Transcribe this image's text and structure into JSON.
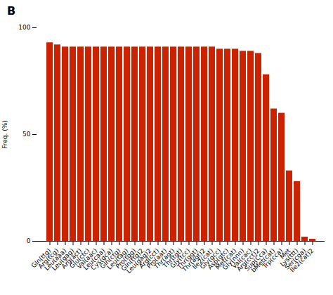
{
  "chart_data": {
    "type": "bar",
    "title": "B",
    "ylabel": "Freq. (%)",
    "categories": [
      "Gln(ttg)",
      "Arg(tcg)",
      "Leu(aaa)",
      "Leu(gag)",
      "Arg(act)",
      "Glu(ctc)",
      "Val(aac)",
      "Leu(caa)",
      "Cys(gca)",
      "Gln(ctg)",
      "Leu(tag)",
      "Pro(tgg)",
      "Gln(ttg)2",
      "Leu(gag)2",
      "Arg(cct)",
      "Pro(aat)",
      "Thr(agt)",
      "Thr(tgt)",
      "Gly(tcc)",
      "Thr(ggt)",
      "Thr(agt)2",
      "Ile2(cat)",
      "Gly(gcc)",
      "Asp(gtc)",
      "Met(cat)",
      "Gly(nnn)",
      "Val(cac)",
      "Arg(cct)2",
      "Sup(Cca)",
      "bMet(cat)",
      "Trp(cca)",
      "Met",
      "Lys(ttt)",
      "Ser(cga)",
      "Ile2(cat)2"
    ],
    "values": [
      93,
      92,
      91,
      91,
      91,
      91,
      91,
      91,
      91,
      91,
      91,
      91,
      91,
      91,
      91,
      91,
      91,
      91,
      91,
      91,
      91,
      91,
      90,
      90,
      90,
      89,
      89,
      88,
      78,
      62,
      60,
      33,
      28,
      2,
      1
    ],
    "color": "#CC2200",
    "ylim": [
      0,
      100
    ],
    "yticks": [
      0,
      50,
      100
    ],
    "grid": false
  }
}
